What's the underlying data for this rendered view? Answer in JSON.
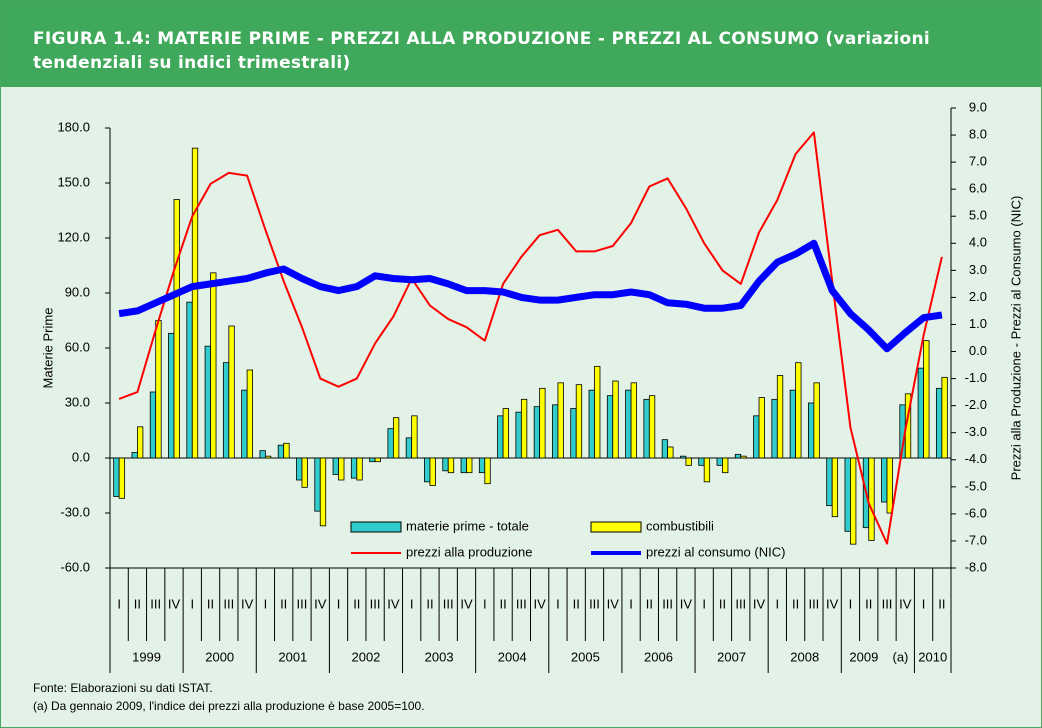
{
  "chart_data": {
    "type": "bar",
    "title": "FIGURA 1.4: MATERIE PRIME - PREZZI ALLA PRODUZIONE - PREZZI AL CONSUMO (variazioni tendenziali su indici trimestrali)",
    "y_label": "Materie Prime",
    "y2_label": "Prezzi alla Produzione - Prezzi al Consumo (NIC)",
    "categories": [
      "I",
      "II",
      "III",
      "IV",
      "I",
      "II",
      "III",
      "IV",
      "I",
      "II",
      "III",
      "IV",
      "I",
      "II",
      "III",
      "IV",
      "I",
      "II",
      "III",
      "IV",
      "I",
      "II",
      "III",
      "IV",
      "I",
      "II",
      "III",
      "IV",
      "I",
      "II",
      "III",
      "IV",
      "I",
      "II",
      "III",
      "IV",
      "I",
      "II",
      "III",
      "IV",
      "I",
      "II",
      "III",
      "IV",
      "I",
      "II"
    ],
    "years": [
      "1999",
      "2000",
      "2001",
      "2002",
      "2003",
      "2004",
      "2005",
      "2006",
      "2007",
      "2008",
      "2009",
      "2010"
    ],
    "annotation": "(a)",
    "series": [
      {
        "name": "materie prime - totale",
        "type": "bar",
        "color": "#33cccc",
        "values": [
          -21,
          3,
          36,
          68,
          85,
          61,
          52,
          37,
          4,
          7,
          -12,
          -29,
          -9,
          -11,
          -2,
          16,
          11,
          -13,
          -7,
          -8,
          -8,
          23,
          25,
          28,
          29,
          27,
          37,
          34,
          37,
          32,
          10,
          1,
          -4,
          -4,
          2,
          23,
          32,
          37,
          30,
          -26,
          -40,
          -38,
          -24,
          29,
          49,
          38
        ]
      },
      {
        "name": "combustibili",
        "type": "bar",
        "color": "#ffff00",
        "values": [
          -22,
          17,
          75,
          141,
          169,
          101,
          72,
          48,
          1,
          8,
          -16,
          -37,
          -12,
          -12,
          -2,
          22,
          23,
          -15,
          -8,
          -8,
          -14,
          27,
          32,
          38,
          41,
          40,
          50,
          42,
          41,
          34,
          6,
          -4,
          -13,
          -8,
          1,
          33,
          45,
          52,
          41,
          -32,
          -47,
          -45,
          -30,
          35,
          64,
          44
        ]
      },
      {
        "name": "prezzi alla produzione",
        "type": "line",
        "axis": "y2",
        "color": "#ff0000",
        "values": [
          -1.75,
          -1.5,
          0.8,
          3.0,
          5.0,
          6.2,
          6.6,
          6.5,
          4.5,
          2.6,
          0.9,
          -1.0,
          -1.3,
          -1.0,
          0.3,
          1.3,
          2.7,
          1.7,
          1.2,
          0.9,
          0.4,
          2.5,
          3.5,
          4.3,
          4.5,
          3.7,
          3.7,
          3.9,
          4.75,
          6.1,
          6.4,
          5.3,
          4.0,
          3.0,
          2.5,
          4.4,
          5.6,
          7.3,
          8.1,
          2.6,
          -2.8,
          -5.6,
          -7.1,
          -2.9,
          0.6,
          3.5
        ]
      },
      {
        "name": "prezzi al consumo (NIC)",
        "type": "line",
        "axis": "y2",
        "color": "#0000ff",
        "values": [
          1.4,
          1.5,
          1.8,
          2.1,
          2.4,
          2.5,
          2.6,
          2.7,
          2.9,
          3.05,
          2.7,
          2.4,
          2.25,
          2.4,
          2.8,
          2.7,
          2.65,
          2.7,
          2.5,
          2.25,
          2.25,
          2.2,
          2.0,
          1.9,
          1.9,
          2.0,
          2.1,
          2.1,
          2.2,
          2.1,
          1.8,
          1.75,
          1.6,
          1.6,
          1.7,
          2.6,
          3.3,
          3.6,
          4.0,
          2.25,
          1.4,
          0.8,
          0.1,
          0.7,
          1.25,
          1.35
        ]
      }
    ],
    "ylim": [
      -60,
      180
    ],
    "yticks": [
      {
        "value": -60,
        "label": "-60.0"
      },
      {
        "value": -30,
        "label": "-30.0"
      },
      {
        "value": 0,
        "label": "0.0"
      },
      {
        "value": 30,
        "label": "30.0"
      },
      {
        "value": 60,
        "label": "60.0"
      },
      {
        "value": 90,
        "label": "90.0"
      },
      {
        "value": 120,
        "label": "120.0"
      },
      {
        "value": 150,
        "label": "150.0"
      },
      {
        "value": 180,
        "label": "180.0"
      }
    ],
    "y2lim": [
      -8,
      9
    ],
    "y2ticks": [
      {
        "value": -8,
        "label": "-8.0"
      },
      {
        "value": -7,
        "label": "-7.0"
      },
      {
        "value": -6,
        "label": "-6.0"
      },
      {
        "value": -5,
        "label": "-5.0"
      },
      {
        "value": -4,
        "label": "-4.0"
      },
      {
        "value": -3,
        "label": "-3.0"
      },
      {
        "value": -2,
        "label": "-2.0"
      },
      {
        "value": -1,
        "label": "-1.0"
      },
      {
        "value": 0,
        "label": "0.0"
      },
      {
        "value": 1,
        "label": "1.0"
      },
      {
        "value": 2,
        "label": "2.0"
      },
      {
        "value": 3,
        "label": "3.0"
      },
      {
        "value": 4,
        "label": "4.0"
      },
      {
        "value": 5,
        "label": "5.0"
      },
      {
        "value": 6,
        "label": "6.0"
      },
      {
        "value": 7,
        "label": "7.0"
      },
      {
        "value": 8,
        "label": "8.0"
      },
      {
        "value": 9,
        "label": "9.0"
      }
    ],
    "notes": [
      "Fonte: Elaborazioni su dati ISTAT.",
      "(a) Da gennaio 2009, l'indice dei prezzi alla produzione è base 2005=100."
    ]
  }
}
